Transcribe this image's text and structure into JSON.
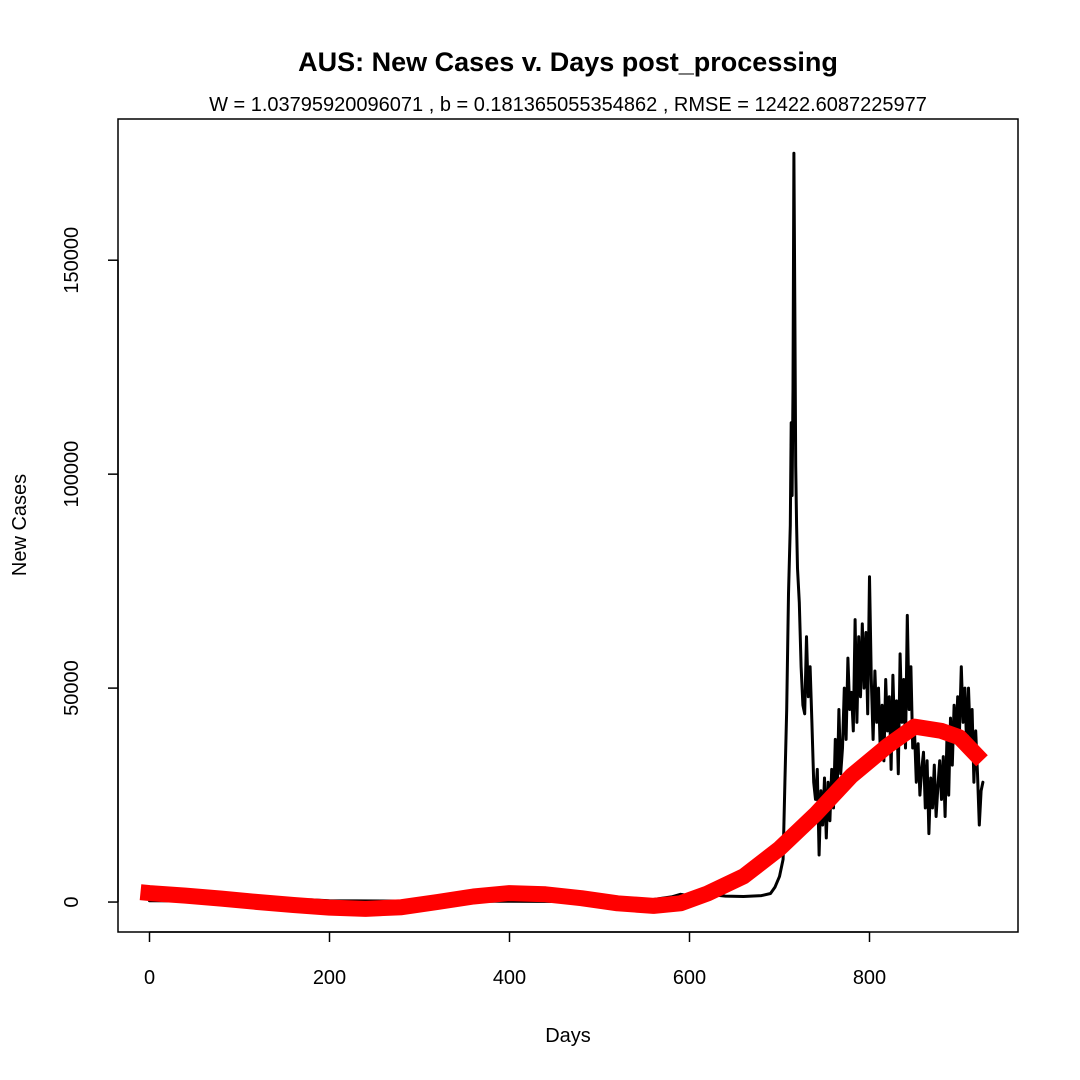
{
  "chart_data": {
    "type": "line",
    "title": "AUS: New Cases v. Days post_processing",
    "subtitle": "W = 1.03795920096071 , b = 0.181365055354862 , RMSE = 12422.6087225977",
    "xlabel": "Days",
    "ylabel": "New Cases",
    "xlim": [
      -35,
      965
    ],
    "ylim": [
      -7000,
      183000
    ],
    "x_ticks": [
      0,
      200,
      400,
      600,
      800
    ],
    "y_ticks": [
      0,
      50000,
      100000,
      150000
    ],
    "x_tick_labels": [
      "0",
      "200",
      "400",
      "600",
      "800"
    ],
    "y_tick_labels": [
      "0",
      "50000",
      "100000",
      "150000"
    ],
    "grid": false,
    "legend": "none",
    "series": [
      {
        "color": "#000000",
        "points": [
          [
            0,
            300
          ],
          [
            100,
            250
          ],
          [
            180,
            500
          ],
          [
            200,
            300
          ],
          [
            300,
            200
          ],
          [
            400,
            200
          ],
          [
            500,
            100
          ],
          [
            560,
            600
          ],
          [
            580,
            1200
          ],
          [
            590,
            1800
          ],
          [
            600,
            1500
          ],
          [
            620,
            1800
          ],
          [
            640,
            1400
          ],
          [
            660,
            1300
          ],
          [
            680,
            1500
          ],
          [
            690,
            2000
          ],
          [
            695,
            3500
          ],
          [
            700,
            6000
          ],
          [
            704,
            10000
          ],
          [
            706,
            28000
          ],
          [
            708,
            45000
          ],
          [
            710,
            72000
          ],
          [
            712,
            88000
          ],
          [
            713,
            112000
          ],
          [
            714,
            95000
          ],
          [
            715,
            120000
          ],
          [
            716,
            175000
          ],
          [
            717,
            140000
          ],
          [
            718,
            102000
          ],
          [
            719,
            88000
          ],
          [
            720,
            78000
          ],
          [
            722,
            70000
          ],
          [
            724,
            55000
          ],
          [
            726,
            46000
          ],
          [
            728,
            44000
          ],
          [
            730,
            62000
          ],
          [
            732,
            48000
          ],
          [
            734,
            55000
          ],
          [
            736,
            42000
          ],
          [
            738,
            28000
          ],
          [
            740,
            24000
          ],
          [
            742,
            31000
          ],
          [
            744,
            11000
          ],
          [
            746,
            26000
          ],
          [
            748,
            18000
          ],
          [
            750,
            29000
          ],
          [
            752,
            15000
          ],
          [
            754,
            28000
          ],
          [
            756,
            19000
          ],
          [
            758,
            31000
          ],
          [
            760,
            22000
          ],
          [
            762,
            38000
          ],
          [
            764,
            25000
          ],
          [
            766,
            45000
          ],
          [
            768,
            30000
          ],
          [
            770,
            36000
          ],
          [
            772,
            50000
          ],
          [
            774,
            38000
          ],
          [
            776,
            57000
          ],
          [
            778,
            45000
          ],
          [
            780,
            49000
          ],
          [
            782,
            40000
          ],
          [
            784,
            66000
          ],
          [
            786,
            42000
          ],
          [
            788,
            62000
          ],
          [
            790,
            48000
          ],
          [
            792,
            65000
          ],
          [
            794,
            50000
          ],
          [
            796,
            63000
          ],
          [
            798,
            44000
          ],
          [
            800,
            76000
          ],
          [
            802,
            52000
          ],
          [
            804,
            38000
          ],
          [
            806,
            54000
          ],
          [
            808,
            42000
          ],
          [
            810,
            50000
          ],
          [
            812,
            35000
          ],
          [
            814,
            46000
          ],
          [
            816,
            33000
          ],
          [
            818,
            52000
          ],
          [
            820,
            40000
          ],
          [
            822,
            48000
          ],
          [
            824,
            31000
          ],
          [
            826,
            53000
          ],
          [
            828,
            38000
          ],
          [
            830,
            47000
          ],
          [
            832,
            30000
          ],
          [
            834,
            58000
          ],
          [
            836,
            42000
          ],
          [
            838,
            52000
          ],
          [
            840,
            36000
          ],
          [
            842,
            67000
          ],
          [
            844,
            45000
          ],
          [
            846,
            55000
          ],
          [
            848,
            36000
          ],
          [
            850,
            40000
          ],
          [
            852,
            28000
          ],
          [
            854,
            37000
          ],
          [
            856,
            25000
          ],
          [
            858,
            31000
          ],
          [
            860,
            35000
          ],
          [
            862,
            22000
          ],
          [
            864,
            33000
          ],
          [
            866,
            16000
          ],
          [
            868,
            29000
          ],
          [
            870,
            22000
          ],
          [
            872,
            32000
          ],
          [
            874,
            20000
          ],
          [
            876,
            27000
          ],
          [
            878,
            33000
          ],
          [
            880,
            24000
          ],
          [
            882,
            34000
          ],
          [
            884,
            20000
          ],
          [
            886,
            38000
          ],
          [
            888,
            25000
          ],
          [
            890,
            43000
          ],
          [
            892,
            32000
          ],
          [
            894,
            46000
          ],
          [
            896,
            38000
          ],
          [
            898,
            48000
          ],
          [
            900,
            40000
          ],
          [
            902,
            55000
          ],
          [
            904,
            42000
          ],
          [
            906,
            50000
          ],
          [
            908,
            36000
          ],
          [
            910,
            50000
          ],
          [
            912,
            38000
          ],
          [
            914,
            45000
          ],
          [
            916,
            28000
          ],
          [
            918,
            40000
          ],
          [
            920,
            30000
          ],
          [
            922,
            18000
          ],
          [
            924,
            26000
          ],
          [
            926,
            28000
          ]
        ]
      },
      {
        "color": "#ff0000",
        "points": [
          [
            -10,
            2300
          ],
          [
            0,
            2100
          ],
          [
            40,
            1500
          ],
          [
            80,
            800
          ],
          [
            120,
            0
          ],
          [
            160,
            -700
          ],
          [
            200,
            -1300
          ],
          [
            240,
            -1600
          ],
          [
            280,
            -1200
          ],
          [
            320,
            0
          ],
          [
            360,
            1300
          ],
          [
            400,
            2100
          ],
          [
            440,
            1800
          ],
          [
            480,
            900
          ],
          [
            520,
            -300
          ],
          [
            560,
            -900
          ],
          [
            590,
            -300
          ],
          [
            620,
            2000
          ],
          [
            660,
            6000
          ],
          [
            700,
            12500
          ],
          [
            740,
            20500
          ],
          [
            780,
            29500
          ],
          [
            820,
            36500
          ],
          [
            850,
            41000
          ],
          [
            880,
            40000
          ],
          [
            900,
            38500
          ],
          [
            925,
            33000
          ]
        ]
      }
    ]
  }
}
